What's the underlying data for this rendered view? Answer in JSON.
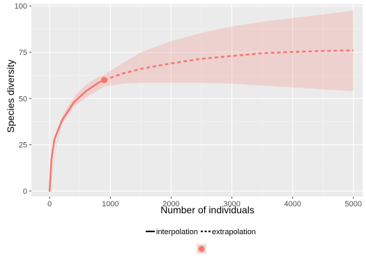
{
  "chart_data": {
    "type": "line",
    "xlabel": "Number of individuals",
    "ylabel": "Species diversity",
    "xlim": [
      -300,
      5150
    ],
    "ylim": [
      -3,
      101
    ],
    "grid": true,
    "legend_position": "bottom",
    "x_ticks": [
      0,
      1000,
      2000,
      3000,
      4000,
      5000
    ],
    "x_tick_labels": [
      "0",
      "1000",
      "2000",
      "3000",
      "4000",
      "5000"
    ],
    "y_ticks": [
      0,
      25,
      50,
      75,
      100
    ],
    "y_tick_labels": [
      "0",
      "25",
      "50",
      "75",
      "100"
    ],
    "series": [
      {
        "segment": "interpolation",
        "color": "#f8766d",
        "line_style": "solid",
        "x": [
          0,
          30,
          80,
          200,
          400,
          600,
          800,
          900
        ],
        "y": [
          0,
          17,
          28,
          38,
          48,
          54,
          58.5,
          60
        ]
      },
      {
        "segment": "extrapolation",
        "color": "#f8766d",
        "line_style": "dashed",
        "x": [
          900,
          1200,
          1500,
          2000,
          2500,
          3000,
          3500,
          4000,
          4500,
          5000
        ],
        "y": [
          60,
          63.5,
          66,
          69,
          71.5,
          73,
          74.5,
          75.2,
          75.7,
          76
        ]
      }
    ],
    "confidence_band": {
      "color": "#f8766d",
      "opacity": 0.22,
      "x": [
        0,
        100,
        200,
        400,
        600,
        800,
        900,
        1200,
        1500,
        2000,
        2500,
        3000,
        3500,
        4000,
        4500,
        5000
      ],
      "upper": [
        1,
        24,
        40,
        51,
        57.5,
        61.5,
        63,
        69,
        75,
        81,
        85.5,
        89,
        91.5,
        93.5,
        95.5,
        97.5
      ],
      "lower": [
        -1,
        22,
        36,
        45.5,
        50.5,
        54.5,
        56.5,
        58,
        58.5,
        58.5,
        58.5,
        58,
        57,
        56,
        55,
        54
      ]
    },
    "observed_point": {
      "x": 900,
      "y": 60,
      "color": "#f8766d"
    },
    "legend": {
      "items": [
        {
          "label": "interpolation",
          "line_style": "solid"
        },
        {
          "label": "extrapolation",
          "line_style": "dashed"
        }
      ],
      "marker_color": "#f8766d"
    }
  }
}
